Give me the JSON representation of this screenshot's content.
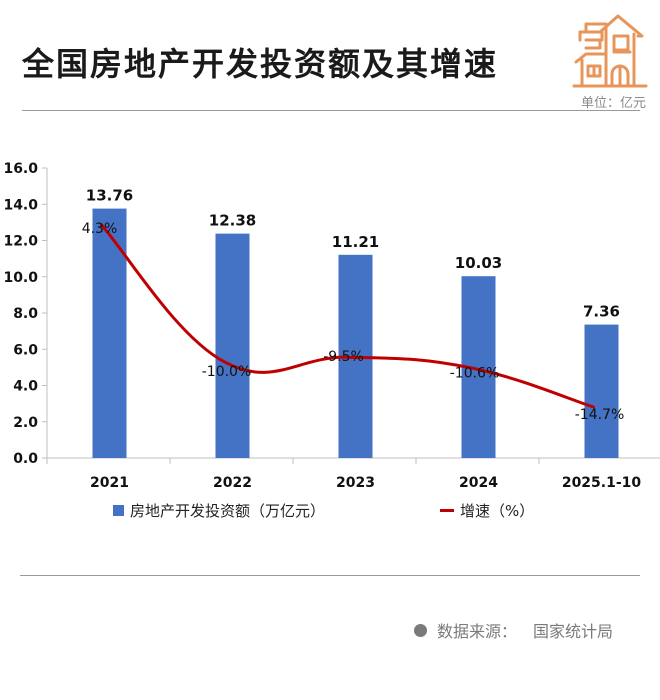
{
  "header": {
    "title": "全国房地产开发投资额及其增速",
    "unit": "单位：亿元",
    "icon": "house-icon"
  },
  "legend": {
    "bar_label": "房地产开发投资额（万亿元）",
    "line_label": "增速（%）"
  },
  "footer": {
    "source_label": "数据来源：",
    "source_value": "国家统计局"
  },
  "colors": {
    "bar": "#4472C4",
    "line": "#C00000",
    "icon": "#E8955A",
    "text_muted": "#7a7a7a"
  },
  "chart_data": {
    "type": "bar",
    "title": "全国房地产开发投资额及其增速",
    "xlabel": "",
    "ylabel": "",
    "ylim": [
      0,
      16
    ],
    "yticks": [
      "0.0",
      "2.0",
      "4.0",
      "6.0",
      "8.0",
      "10.0",
      "12.0",
      "14.0",
      "16.0"
    ],
    "categories": [
      "2021",
      "2022",
      "2023",
      "2024",
      "2025.1-10"
    ],
    "series": [
      {
        "name": "房地产开发投资额（万亿元）",
        "type": "bar",
        "values": [
          13.76,
          12.38,
          11.21,
          10.03,
          7.36
        ],
        "labels": [
          "13.76",
          "12.38",
          "11.21",
          "10.03",
          "7.36"
        ]
      },
      {
        "name": "增速（%）",
        "type": "line",
        "values": [
          4.3,
          -10.0,
          -9.5,
          -10.6,
          -14.7
        ],
        "labels": [
          "4.3%",
          "-10.0%",
          "-9.5%",
          "-10.6%",
          "-14.7%"
        ]
      }
    ],
    "grid": false,
    "legend_position": "bottom"
  }
}
